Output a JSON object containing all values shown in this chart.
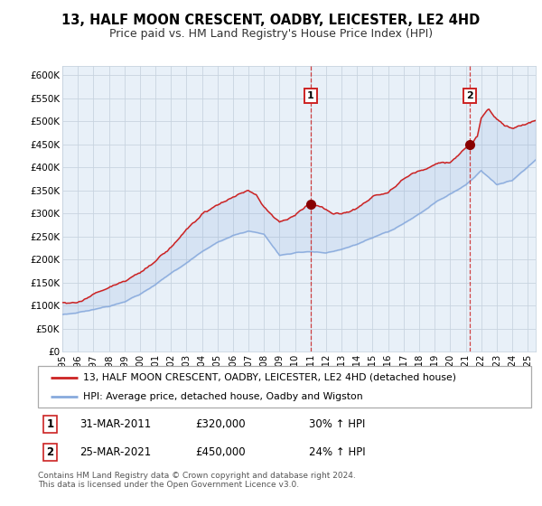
{
  "title": "13, HALF MOON CRESCENT, OADBY, LEICESTER, LE2 4HD",
  "subtitle": "Price paid vs. HM Land Registry's House Price Index (HPI)",
  "ylabel_ticks": [
    "£0",
    "£50K",
    "£100K",
    "£150K",
    "£200K",
    "£250K",
    "£300K",
    "£350K",
    "£400K",
    "£450K",
    "£500K",
    "£550K",
    "£600K"
  ],
  "ytick_values": [
    0,
    50000,
    100000,
    150000,
    200000,
    250000,
    300000,
    350000,
    400000,
    450000,
    500000,
    550000,
    600000
  ],
  "ylim": [
    0,
    620000
  ],
  "xlim_start": 1995.0,
  "xlim_end": 2025.5,
  "sale1_x": 2011.0,
  "sale1_y": 320000,
  "sale2_x": 2021.25,
  "sale2_y": 450000,
  "sale1_date": "31-MAR-2011",
  "sale1_price": "£320,000",
  "sale1_hpi": "30% ↑ HPI",
  "sale2_date": "25-MAR-2021",
  "sale2_price": "£450,000",
  "sale2_hpi": "24% ↑ HPI",
  "red_line_color": "#cc2222",
  "blue_line_color": "#88aadd",
  "bg_color": "#e8f0f8",
  "grid_color": "#c8d4e0",
  "dot_color": "#880000",
  "vline1_color": "#cc2222",
  "vline2_color": "#cc2222",
  "legend_line1": "13, HALF MOON CRESCENT, OADBY, LEICESTER, LE2 4HD (detached house)",
  "legend_line2": "HPI: Average price, detached house, Oadby and Wigston",
  "footer": "Contains HM Land Registry data © Crown copyright and database right 2024.\nThis data is licensed under the Open Government Licence v3.0.",
  "marker_box_color": "#cc2222",
  "title_fontsize": 10.5,
  "subtitle_fontsize": 9
}
